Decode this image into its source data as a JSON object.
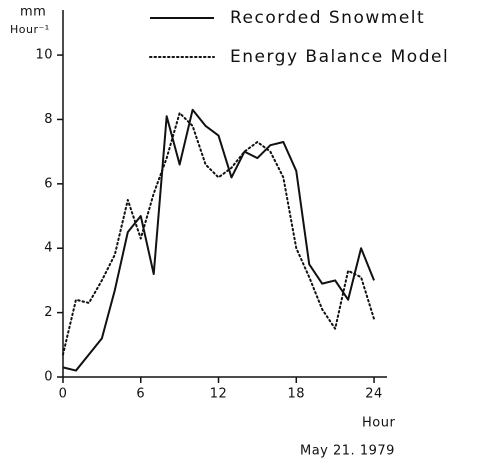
{
  "chart_data": {
    "type": "line",
    "y_label": "mm",
    "y_unit": "Hour⁻¹",
    "x_label": "Hour",
    "note": "May 21. 1979",
    "x": [
      0,
      1,
      2,
      3,
      4,
      5,
      6,
      7,
      8,
      9,
      10,
      11,
      12,
      13,
      14,
      15,
      16,
      17,
      18,
      19,
      20,
      21,
      22,
      23,
      24
    ],
    "series": [
      {
        "name": "Recorded Snowmelt",
        "color": "#111111",
        "style": "solid",
        "values": [
          0.3,
          0.2,
          0.7,
          1.2,
          2.7,
          4.5,
          5.0,
          3.2,
          8.1,
          6.6,
          8.3,
          7.8,
          7.5,
          6.2,
          7.0,
          6.8,
          7.2,
          7.3,
          6.4,
          3.5,
          2.9,
          3.0,
          2.4,
          4.0,
          3.0
        ]
      },
      {
        "name": "Energy Balance Model",
        "color": "#111111",
        "style": "dotted",
        "values": [
          0.7,
          2.4,
          2.3,
          3.0,
          3.8,
          5.5,
          4.3,
          5.7,
          6.8,
          8.2,
          7.8,
          6.6,
          6.2,
          6.5,
          7.0,
          7.3,
          7.0,
          6.2,
          4.0,
          3.1,
          2.1,
          1.5,
          3.3,
          3.1,
          1.8
        ]
      }
    ],
    "xlim": [
      0,
      25
    ],
    "ylim": [
      0,
      11.4
    ],
    "xticks": [
      0,
      6,
      12,
      18,
      24
    ],
    "yticks": [
      0,
      2,
      4,
      6,
      8,
      10
    ]
  }
}
